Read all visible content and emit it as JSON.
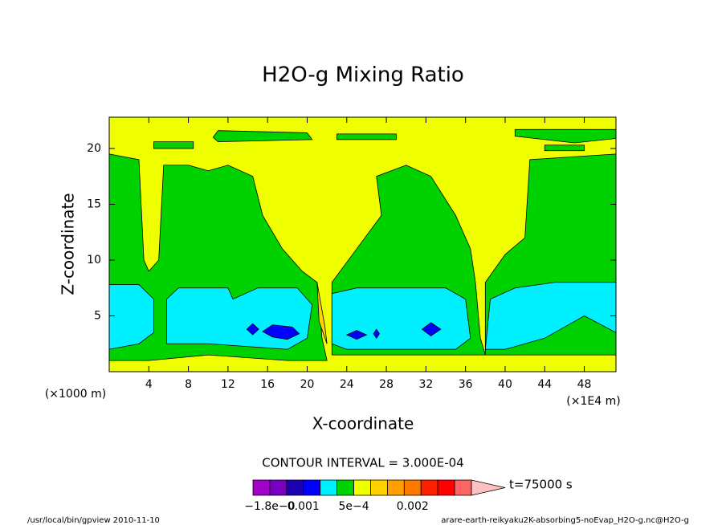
{
  "chart_data": {
    "type": "contour",
    "title": "H2O-g Mixing Ratio",
    "x_label": "X-coordinate",
    "y_label": "Z-coordinate",
    "x_unit": "(×1E4 m)",
    "y_unit": "(×1000 m)",
    "xlim": [
      0,
      51.2
    ],
    "ylim": [
      0,
      22.8
    ],
    "xticks": [
      4,
      8,
      12,
      16,
      20,
      24,
      28,
      32,
      36,
      40,
      44,
      48
    ],
    "yticks": [
      5,
      10,
      15,
      20
    ],
    "contour_interval": "CONTOUR INTERVAL = 3.000E-04",
    "time": "t=75000 s",
    "colorbar": {
      "colors": [
        "#a000c8",
        "#7800c0",
        "#1e00b4",
        "#0000ff",
        "#00f0ff",
        "#00d200",
        "#f0ff00",
        "#ffd200",
        "#ffa000",
        "#ff7800",
        "#ff2000",
        "#ff0000",
        "#ff6464",
        "#ffc0c0"
      ],
      "labels": [
        "−1.8e−0",
        "0.001",
        "5e−4",
        "0.002"
      ]
    },
    "regions": [
      {
        "color_index": 6,
        "points": [
          [
            0,
            0
          ],
          [
            51.2,
            0
          ],
          [
            51.2,
            22.8
          ],
          [
            0,
            22.8
          ]
        ]
      },
      {
        "color_index": 5,
        "points": [
          [
            0,
            1
          ],
          [
            0,
            19.5
          ],
          [
            3,
            19
          ],
          [
            3.5,
            10
          ],
          [
            4,
            9
          ],
          [
            5,
            10
          ],
          [
            5.5,
            18.5
          ],
          [
            8,
            18.5
          ],
          [
            10,
            18
          ],
          [
            12,
            18.5
          ],
          [
            14.5,
            17.5
          ],
          [
            15.5,
            14
          ],
          [
            17.5,
            11
          ],
          [
            19.5,
            9
          ],
          [
            21,
            8
          ],
          [
            21.5,
            3
          ],
          [
            22,
            1
          ],
          [
            18,
            1
          ],
          [
            10,
            1.5
          ],
          [
            4,
            1
          ]
        ]
      },
      {
        "color_index": 5,
        "points": [
          [
            22.5,
            1.5
          ],
          [
            22.5,
            8
          ],
          [
            25,
            11
          ],
          [
            27.5,
            14
          ],
          [
            27,
            17.5
          ],
          [
            30,
            18.5
          ],
          [
            32.5,
            17.5
          ],
          [
            35,
            14
          ],
          [
            36.5,
            11
          ],
          [
            37,
            8
          ],
          [
            37.5,
            3
          ],
          [
            38,
            1.5
          ],
          [
            30,
            1.5
          ]
        ]
      },
      {
        "color_index": 5,
        "points": [
          [
            38,
            1.5
          ],
          [
            38,
            8
          ],
          [
            40,
            10.5
          ],
          [
            42,
            12
          ],
          [
            42.5,
            19
          ],
          [
            51.2,
            19.5
          ],
          [
            51.2,
            1.5
          ]
        ]
      },
      {
        "color_index": 5,
        "points": [
          [
            10.5,
            21
          ],
          [
            11,
            21.6
          ],
          [
            20,
            21.4
          ],
          [
            20.5,
            20.8
          ],
          [
            11,
            20.6
          ]
        ]
      },
      {
        "color_index": 5,
        "points": [
          [
            4.5,
            20
          ],
          [
            4.5,
            20.6
          ],
          [
            8.5,
            20.6
          ],
          [
            8.5,
            20
          ]
        ]
      },
      {
        "color_index": 5,
        "points": [
          [
            23,
            20.8
          ],
          [
            23,
            21.3
          ],
          [
            29,
            21.3
          ],
          [
            29,
            20.8
          ]
        ]
      },
      {
        "color_index": 5,
        "points": [
          [
            41,
            21.1
          ],
          [
            41,
            21.7
          ],
          [
            51.2,
            21.7
          ],
          [
            51.2,
            20.9
          ],
          [
            47,
            20.5
          ]
        ]
      },
      {
        "color_index": 5,
        "points": [
          [
            44,
            19.8
          ],
          [
            44,
            20.3
          ],
          [
            48,
            20.3
          ],
          [
            48,
            19.8
          ]
        ]
      },
      {
        "color_index": 4,
        "points": [
          [
            0,
            2
          ],
          [
            0,
            7.8
          ],
          [
            3,
            7.8
          ],
          [
            4.5,
            6.5
          ],
          [
            4.5,
            3.5
          ],
          [
            3,
            2.5
          ]
        ]
      },
      {
        "color_index": 4,
        "points": [
          [
            5.8,
            2.5
          ],
          [
            5.8,
            6.5
          ],
          [
            7,
            7.5
          ],
          [
            12,
            7.5
          ],
          [
            12.5,
            6.5
          ],
          [
            15,
            7.5
          ],
          [
            19,
            7.5
          ],
          [
            20.5,
            6
          ],
          [
            20,
            3
          ],
          [
            18,
            2
          ],
          [
            10,
            2.5
          ]
        ]
      },
      {
        "color_index": 4,
        "points": [
          [
            22.5,
            2.5
          ],
          [
            22.5,
            7
          ],
          [
            25,
            7.5
          ],
          [
            34,
            7.5
          ],
          [
            36,
            6.5
          ],
          [
            36.5,
            3
          ],
          [
            35,
            2
          ],
          [
            24,
            2
          ]
        ]
      },
      {
        "color_index": 4,
        "points": [
          [
            38,
            2
          ],
          [
            38.5,
            6.5
          ],
          [
            41,
            7.5
          ],
          [
            45,
            8
          ],
          [
            51.2,
            8
          ],
          [
            51.2,
            3.5
          ],
          [
            48,
            5
          ],
          [
            47,
            4.5
          ],
          [
            44,
            3
          ],
          [
            40,
            2
          ]
        ]
      },
      {
        "color_index": 3,
        "points": [
          [
            13.9,
            3.8
          ],
          [
            14.5,
            4.3
          ],
          [
            15.1,
            3.8
          ],
          [
            14.5,
            3.3
          ]
        ]
      },
      {
        "color_index": 3,
        "points": [
          [
            15.5,
            3.6
          ],
          [
            16.5,
            4.2
          ],
          [
            18.5,
            4
          ],
          [
            19.2,
            3.4
          ],
          [
            18,
            2.9
          ],
          [
            16.5,
            3.1
          ]
        ]
      },
      {
        "color_index": 3,
        "points": [
          [
            24,
            3.3
          ],
          [
            25,
            3.7
          ],
          [
            26,
            3.3
          ],
          [
            25,
            2.9
          ]
        ]
      },
      {
        "color_index": 3,
        "points": [
          [
            26.7,
            3.4
          ],
          [
            27,
            3.8
          ],
          [
            27.3,
            3.4
          ],
          [
            27,
            3
          ]
        ]
      },
      {
        "color_index": 3,
        "points": [
          [
            31.6,
            3.8
          ],
          [
            32.5,
            4.4
          ],
          [
            33.5,
            3.8
          ],
          [
            32.5,
            3.2
          ]
        ]
      },
      {
        "color_index": 7,
        "points": [
          [
            21,
            8
          ],
          [
            21.8,
            4
          ],
          [
            22,
            2.5
          ],
          [
            21.2,
            4.5
          ]
        ]
      }
    ]
  }
}
